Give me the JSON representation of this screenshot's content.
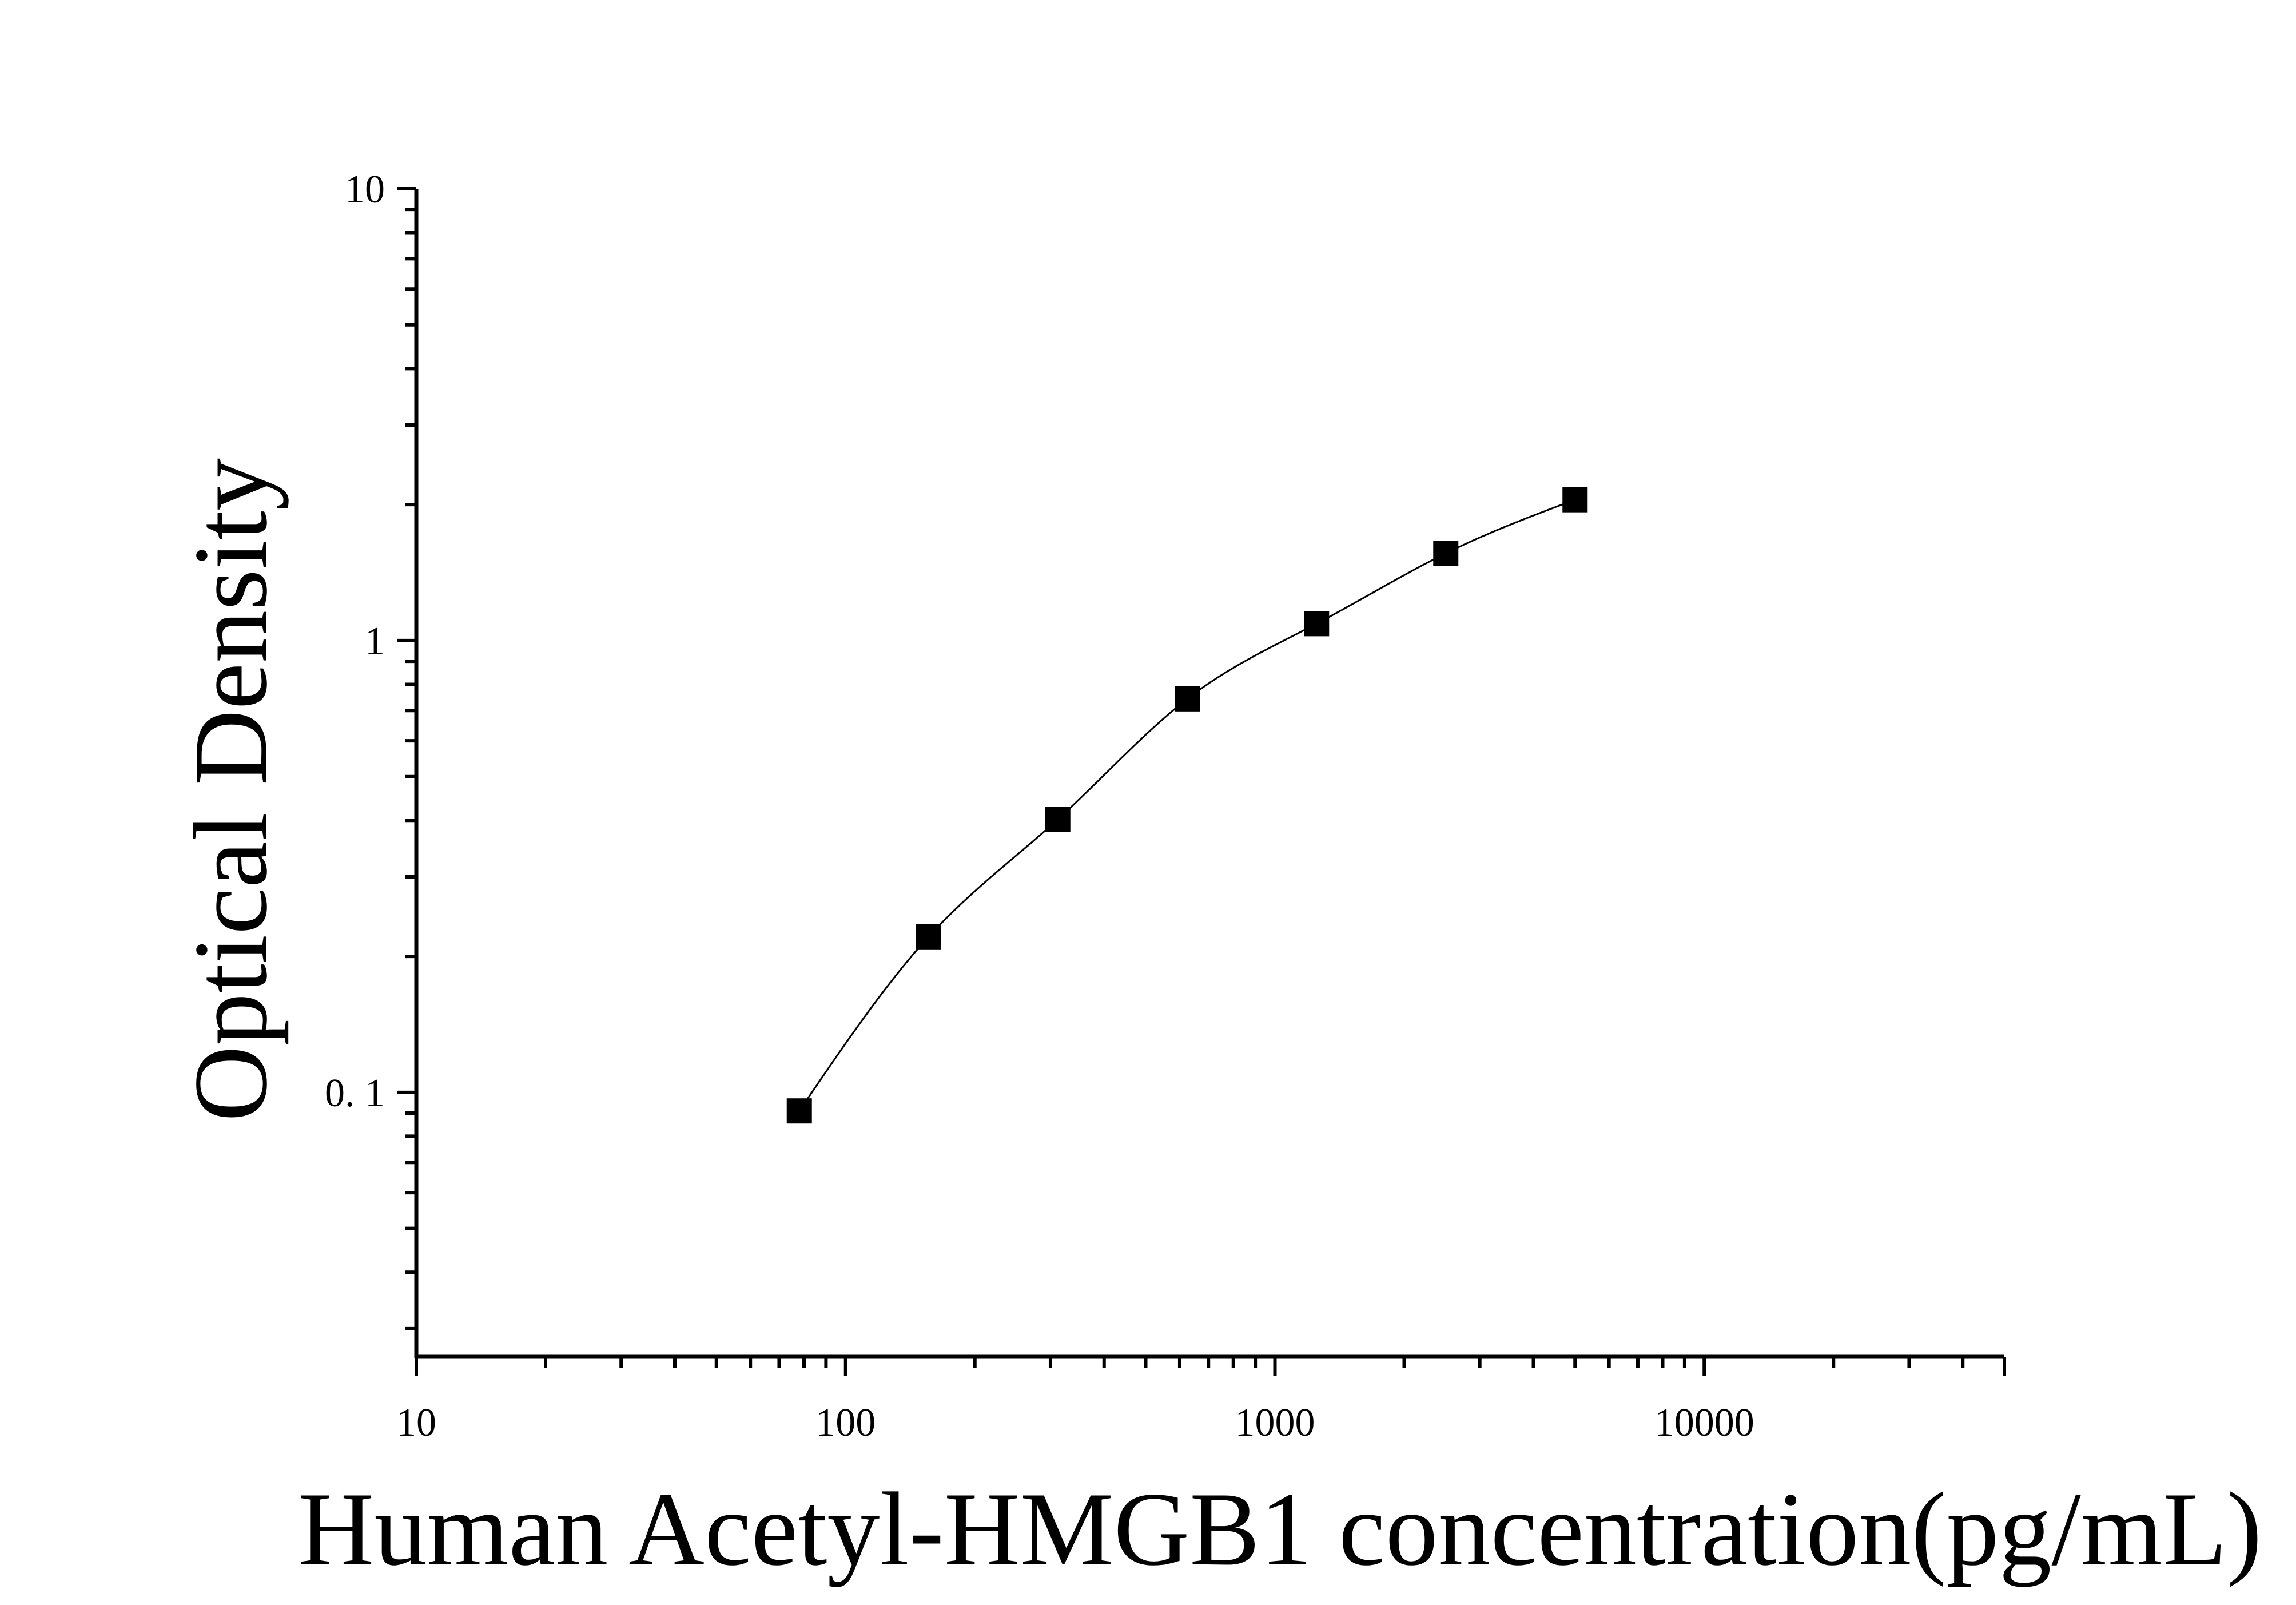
{
  "chart_data": {
    "type": "scatter",
    "title": "",
    "xlabel": "Human Acetyl-HMGB1 concentration(pg/mL)",
    "ylabel": "Optical Density",
    "x_scale": "log",
    "y_scale": "log",
    "xlim": [
      10,
      50000
    ],
    "ylim": [
      0.026,
      10
    ],
    "x_ticks": [
      10,
      100,
      1000,
      10000
    ],
    "x_tick_labels": [
      "10",
      "100",
      "1000",
      "10000"
    ],
    "y_ticks": [
      0.1,
      1,
      10
    ],
    "y_tick_labels": [
      "0. 1",
      "1",
      "10"
    ],
    "grid": false,
    "legend": "none",
    "marker": "square",
    "marker_color": "#000000",
    "fit_curve": "smooth",
    "series": [
      {
        "x": [
          78,
          156,
          312,
          625,
          1250,
          2500,
          5000
        ],
        "y": [
          0.091,
          0.221,
          0.402,
          0.743,
          1.09,
          1.56,
          2.05
        ]
      }
    ]
  }
}
